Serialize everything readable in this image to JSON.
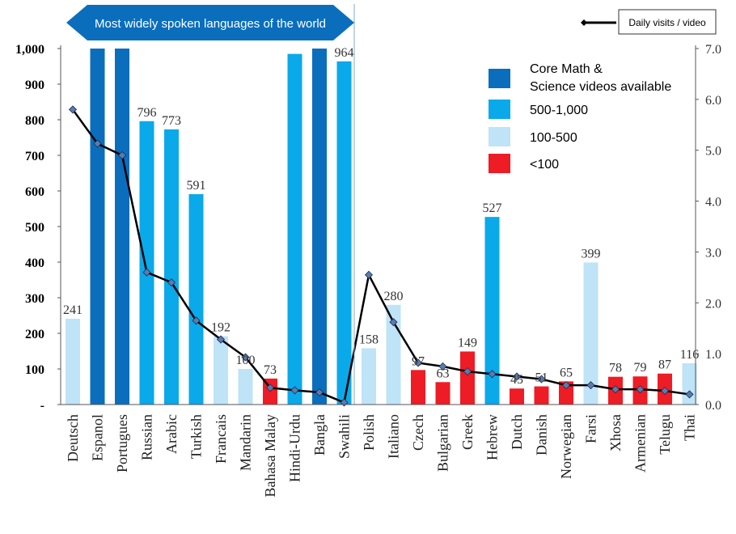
{
  "chart_data": {
    "type": "bar",
    "banner": "Most widely spoken languages of the world",
    "categories": [
      "Deutsch",
      "Espanol",
      "Portugues",
      "Russian",
      "Arabic",
      "Turkish",
      "Francais",
      "Mandarin",
      "Bahasa Malay",
      "Hindi-Urdu",
      "Bangla",
      "Swahili",
      "Polish",
      "Italiano",
      "Czech",
      "Bulgarian",
      "Greek",
      "Hebrew",
      "Dutch",
      "Danish",
      "Norwegian",
      "Farsi",
      "Xhosa",
      "Armenian",
      "Telugu",
      "Thai"
    ],
    "values": [
      241,
      1000,
      1000,
      796,
      773,
      591,
      192,
      100,
      73,
      985,
      1000,
      964,
      158,
      280,
      97,
      63,
      149,
      527,
      45,
      51,
      65,
      399,
      78,
      79,
      87,
      116
    ],
    "data_labels": [
      "241",
      "",
      "",
      "796",
      "773",
      "591",
      "192",
      "100",
      "73",
      "",
      "",
      "964",
      "158",
      "280",
      "97",
      "63",
      "149",
      "527",
      "45",
      "51",
      "65",
      "399",
      "78",
      "79",
      "87",
      "116"
    ],
    "bar_class": [
      "light",
      "core",
      "core",
      "mid",
      "mid",
      "mid",
      "light",
      "light",
      "red",
      "mid",
      "core",
      "mid",
      "light",
      "light",
      "red",
      "red",
      "red",
      "mid",
      "red",
      "red",
      "red",
      "light",
      "red",
      "red",
      "red",
      "light"
    ],
    "line_series": {
      "name": "Daily visits / video",
      "values": [
        5.8,
        5.13,
        4.9,
        2.6,
        2.4,
        1.65,
        1.28,
        0.93,
        0.33,
        0.28,
        0.24,
        0.04,
        2.55,
        1.62,
        0.82,
        0.75,
        0.65,
        0.6,
        0.55,
        0.5,
        0.38,
        0.38,
        0.3,
        0.3,
        0.27,
        0.2
      ]
    },
    "y_left": {
      "ticks": [
        "-",
        "100",
        "200",
        "300",
        "400",
        "500",
        "600",
        "700",
        "800",
        "900",
        "1,000"
      ],
      "range": [
        0,
        1000
      ]
    },
    "y_right": {
      "ticks": [
        "0.0",
        "1.0",
        "2.0",
        "3.0",
        "4.0",
        "5.0",
        "6.0",
        "7.0"
      ],
      "range": [
        0,
        7
      ]
    },
    "legend": {
      "placement": "top-right",
      "items": [
        {
          "key": "core",
          "label": "Core Math & Science videos available"
        },
        {
          "key": "mid",
          "label": "500-1,000"
        },
        {
          "key": "light",
          "label": "100-500"
        },
        {
          "key": "red",
          "label": "<100"
        }
      ],
      "line_label": "Daily visits / video"
    },
    "colors": {
      "core": "#0a6ebd",
      "mid": "#0aa9ea",
      "light": "#bfe3f7",
      "red": "#ee1c24",
      "line": "#000000",
      "marker": "#5b7bb0",
      "banner": "#0a6ebd",
      "divider": "#7fa9d9"
    },
    "grid": false
  }
}
